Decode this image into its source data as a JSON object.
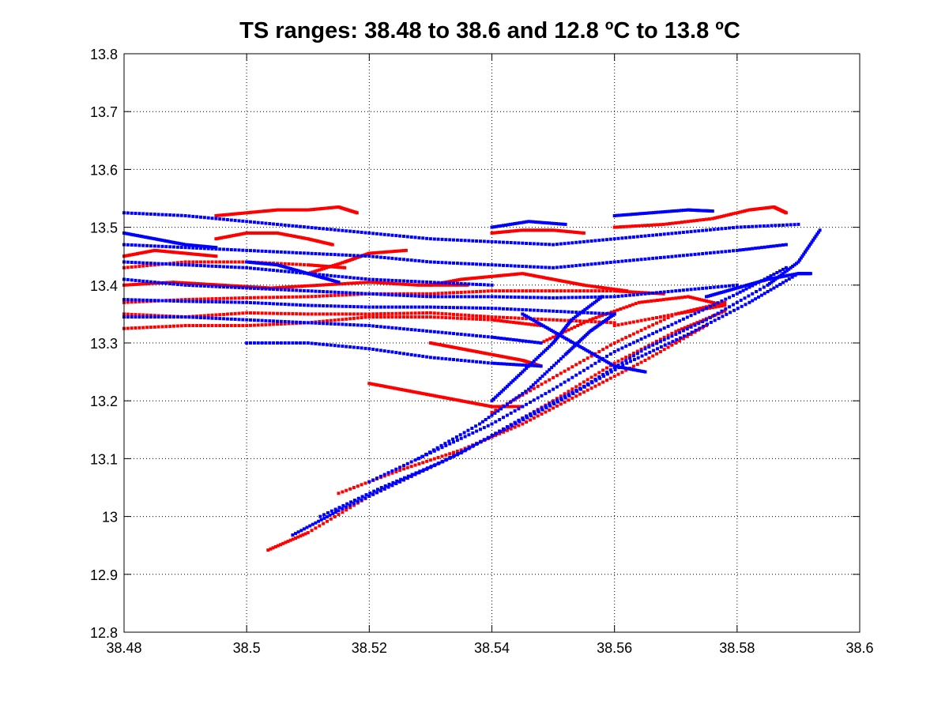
{
  "chart_data": {
    "type": "scatter",
    "title": "TS ranges: 38.48 to 38.6 and 12.8 ºC to 13.8 ºC",
    "xlabel": "",
    "ylabel": "",
    "xlim": [
      38.48,
      38.6
    ],
    "ylim": [
      12.8,
      13.8
    ],
    "xticks": [
      38.48,
      38.5,
      38.52,
      38.54,
      38.56,
      38.58,
      38.6
    ],
    "xtick_labels": [
      "38.48",
      "38.5",
      "38.52",
      "38.54",
      "38.56",
      "38.58",
      "38.6"
    ],
    "yticks": [
      12.8,
      12.9,
      13.0,
      13.1,
      13.2,
      13.3,
      13.4,
      13.5,
      13.6,
      13.7,
      13.8
    ],
    "ytick_labels": [
      "12.8",
      "12.9",
      "13",
      "13.1",
      "13.2",
      "13.3",
      "13.4",
      "13.5",
      "13.6",
      "13.7",
      "13.8"
    ],
    "grid": true,
    "series": [
      {
        "color": "#ff0000",
        "segments": [
          [
            [
              38.5035,
              12.942
            ],
            [
              38.51,
              12.972
            ],
            [
              38.52,
              13.035
            ],
            [
              38.53,
              13.085
            ],
            [
              38.54,
              13.14
            ],
            [
              38.55,
              13.2
            ],
            [
              38.56,
              13.265
            ],
            [
              38.57,
              13.32
            ],
            [
              38.578,
              13.355
            ]
          ],
          [
            [
              38.515,
              13.04
            ],
            [
              38.525,
              13.08
            ],
            [
              38.535,
              13.115
            ],
            [
              38.545,
              13.16
            ],
            [
              38.555,
              13.215
            ],
            [
              38.565,
              13.27
            ],
            [
              38.575,
              13.33
            ]
          ],
          [
            [
              38.54,
              13.18
            ],
            [
              38.55,
              13.24
            ],
            [
              38.56,
              13.3
            ],
            [
              38.57,
              13.35
            ],
            [
              38.578,
              13.37
            ]
          ],
          [
            [
              38.548,
              13.3
            ],
            [
              38.556,
              13.34
            ],
            [
              38.564,
              13.37
            ],
            [
              38.572,
              13.38
            ],
            [
              38.578,
              13.365
            ],
            [
              38.57,
              13.35
            ],
            [
              38.56,
              13.33
            ]
          ],
          [
            [
              38.48,
              13.325
            ],
            [
              38.49,
              13.33
            ],
            [
              38.5,
              13.33
            ],
            [
              38.51,
              13.335
            ],
            [
              38.52,
              13.345
            ],
            [
              38.53,
              13.345
            ],
            [
              38.54,
              13.34
            ],
            [
              38.548,
              13.33
            ]
          ],
          [
            [
              38.48,
              13.35
            ],
            [
              38.49,
              13.345
            ],
            [
              38.5,
              13.352
            ],
            [
              38.51,
              13.35
            ],
            [
              38.52,
              13.35
            ],
            [
              38.53,
              13.352
            ],
            [
              38.54,
              13.345
            ],
            [
              38.55,
              13.34
            ],
            [
              38.56,
              13.335
            ]
          ],
          [
            [
              38.48,
              13.37
            ],
            [
              38.49,
              13.375
            ],
            [
              38.5,
              13.378
            ],
            [
              38.51,
              13.38
            ],
            [
              38.52,
              13.385
            ],
            [
              38.53,
              13.385
            ],
            [
              38.54,
              13.39
            ],
            [
              38.55,
              13.39
            ],
            [
              38.56,
              13.39
            ],
            [
              38.568,
              13.385
            ]
          ],
          [
            [
              38.48,
              13.4
            ],
            [
              38.488,
              13.405
            ],
            [
              38.496,
              13.4
            ],
            [
              38.504,
              13.395
            ],
            [
              38.512,
              13.4
            ],
            [
              38.52,
              13.405
            ],
            [
              38.528,
              13.4
            ],
            [
              38.536,
              13.4
            ]
          ],
          [
            [
              38.48,
              13.43
            ],
            [
              38.49,
              13.44
            ],
            [
              38.5,
              13.44
            ],
            [
              38.51,
              13.435
            ],
            [
              38.516,
              13.43
            ]
          ],
          [
            [
              38.53,
              13.4
            ],
            [
              38.535,
              13.41
            ],
            [
              38.54,
              13.415
            ],
            [
              38.545,
              13.42
            ],
            [
              38.55,
              13.41
            ],
            [
              38.555,
              13.4
            ],
            [
              38.562,
              13.39
            ]
          ],
          [
            [
              38.495,
              13.52
            ],
            [
              38.5,
              13.525
            ],
            [
              38.505,
              13.53
            ],
            [
              38.51,
              13.53
            ],
            [
              38.515,
              13.535
            ],
            [
              38.518,
              13.525
            ]
          ],
          [
            [
              38.495,
              13.48
            ],
            [
              38.5,
              13.49
            ],
            [
              38.505,
              13.49
            ],
            [
              38.51,
              13.48
            ],
            [
              38.514,
              13.47
            ]
          ],
          [
            [
              38.54,
              13.49
            ],
            [
              38.545,
              13.495
            ],
            [
              38.55,
              13.495
            ],
            [
              38.555,
              13.49
            ]
          ],
          [
            [
              38.56,
              13.5
            ],
            [
              38.568,
              13.505
            ],
            [
              38.576,
              13.515
            ],
            [
              38.582,
              13.53
            ],
            [
              38.586,
              13.535
            ],
            [
              38.588,
              13.525
            ]
          ],
          [
            [
              38.52,
              13.23
            ],
            [
              38.525,
              13.22
            ],
            [
              38.53,
              13.21
            ],
            [
              38.535,
              13.2
            ],
            [
              38.54,
              13.19
            ],
            [
              38.545,
              13.19
            ]
          ],
          [
            [
              38.53,
              13.3
            ],
            [
              38.535,
              13.29
            ],
            [
              38.54,
              13.28
            ],
            [
              38.545,
              13.27
            ],
            [
              38.548,
              13.26
            ]
          ],
          [
            [
              38.48,
              13.45
            ],
            [
              38.485,
              13.46
            ],
            [
              38.49,
              13.455
            ],
            [
              38.495,
              13.45
            ]
          ],
          [
            [
              38.51,
              13.42
            ],
            [
              38.516,
              13.44
            ],
            [
              38.52,
              13.455
            ],
            [
              38.526,
              13.46
            ]
          ]
        ]
      },
      {
        "color": "#0000ff",
        "segments": [
          [
            [
              38.5075,
              12.968
            ],
            [
              38.515,
              13.01
            ],
            [
              38.525,
              13.06
            ],
            [
              38.535,
              13.11
            ],
            [
              38.545,
              13.17
            ],
            [
              38.555,
              13.225
            ],
            [
              38.565,
              13.29
            ],
            [
              38.575,
              13.34
            ],
            [
              38.585,
              13.4
            ],
            [
              38.59,
              13.44
            ],
            [
              38.5935,
              13.495
            ]
          ],
          [
            [
              38.512,
              13.0
            ],
            [
              38.522,
              13.05
            ],
            [
              38.532,
              13.095
            ],
            [
              38.542,
              13.15
            ],
            [
              38.552,
              13.205
            ],
            [
              38.562,
              13.265
            ],
            [
              38.572,
              13.315
            ],
            [
              38.582,
              13.37
            ],
            [
              38.59,
              13.42
            ]
          ],
          [
            [
              38.52,
              13.06
            ],
            [
              38.53,
              13.11
            ],
            [
              38.54,
              13.16
            ],
            [
              38.55,
              13.22
            ],
            [
              38.56,
              13.285
            ],
            [
              38.57,
              13.335
            ],
            [
              38.58,
              13.385
            ],
            [
              38.588,
              13.43
            ]
          ],
          [
            [
              38.528,
              13.1
            ],
            [
              38.538,
              13.16
            ],
            [
              38.546,
              13.22
            ],
            [
              38.552,
              13.28
            ],
            [
              38.556,
              13.32
            ],
            [
              38.56,
              13.35
            ]
          ],
          [
            [
              38.54,
              13.2
            ],
            [
              38.545,
              13.25
            ],
            [
              38.55,
              13.3
            ],
            [
              38.553,
              13.34
            ],
            [
              38.558,
              13.38
            ]
          ],
          [
            [
              38.48,
              13.525
            ],
            [
              38.49,
              13.52
            ],
            [
              38.5,
              13.51
            ],
            [
              38.51,
              13.5
            ],
            [
              38.52,
              13.49
            ],
            [
              38.53,
              13.48
            ],
            [
              38.54,
              13.475
            ],
            [
              38.55,
              13.47
            ],
            [
              38.56,
              13.48
            ],
            [
              38.57,
              13.49
            ],
            [
              38.58,
              13.5
            ],
            [
              38.59,
              13.505
            ]
          ],
          [
            [
              38.48,
              13.47
            ],
            [
              38.49,
              13.465
            ],
            [
              38.5,
              13.46
            ],
            [
              38.51,
              13.455
            ],
            [
              38.52,
              13.45
            ],
            [
              38.53,
              13.44
            ],
            [
              38.54,
              13.435
            ],
            [
              38.55,
              13.43
            ],
            [
              38.56,
              13.44
            ],
            [
              38.57,
              13.45
            ],
            [
              38.58,
              13.46
            ],
            [
              38.588,
              13.47
            ]
          ],
          [
            [
              38.48,
              13.41
            ],
            [
              38.49,
              13.4
            ],
            [
              38.5,
              13.395
            ],
            [
              38.51,
              13.39
            ],
            [
              38.52,
              13.385
            ],
            [
              38.53,
              13.38
            ],
            [
              38.54,
              13.38
            ],
            [
              38.55,
              13.378
            ],
            [
              38.56,
              13.38
            ],
            [
              38.57,
              13.39
            ],
            [
              38.58,
              13.4
            ]
          ],
          [
            [
              38.48,
              13.375
            ],
            [
              38.49,
              13.372
            ],
            [
              38.5,
              13.37
            ],
            [
              38.51,
              13.365
            ],
            [
              38.52,
              13.362
            ],
            [
              38.53,
              13.362
            ],
            [
              38.54,
              13.36
            ],
            [
              38.55,
              13.355
            ],
            [
              38.56,
              13.35
            ]
          ],
          [
            [
              38.48,
              13.345
            ],
            [
              38.49,
              13.345
            ],
            [
              38.5,
              13.34
            ],
            [
              38.51,
              13.335
            ],
            [
              38.52,
              13.33
            ],
            [
              38.53,
              13.32
            ],
            [
              38.54,
              13.31
            ],
            [
              38.548,
              13.3
            ]
          ],
          [
            [
              38.48,
              13.44
            ],
            [
              38.49,
              13.435
            ],
            [
              38.5,
              13.43
            ],
            [
              38.51,
              13.42
            ],
            [
              38.52,
              13.41
            ],
            [
              38.53,
              13.405
            ],
            [
              38.54,
              13.4
            ]
          ],
          [
            [
              38.5,
              13.3
            ],
            [
              38.51,
              13.3
            ],
            [
              38.52,
              13.29
            ],
            [
              38.53,
              13.275
            ],
            [
              38.54,
              13.265
            ],
            [
              38.548,
              13.26
            ]
          ],
          [
            [
              38.545,
              13.35
            ],
            [
              38.55,
              13.32
            ],
            [
              38.555,
              13.29
            ],
            [
              38.56,
              13.26
            ],
            [
              38.565,
              13.25
            ]
          ],
          [
            [
              38.56,
              13.52
            ],
            [
              38.566,
              13.525
            ],
            [
              38.572,
              13.53
            ],
            [
              38.576,
              13.528
            ]
          ],
          [
            [
              38.54,
              13.5
            ],
            [
              38.546,
              13.51
            ],
            [
              38.552,
              13.505
            ]
          ],
          [
            [
              38.575,
              13.38
            ],
            [
              38.58,
              13.395
            ],
            [
              38.585,
              13.41
            ],
            [
              38.59,
              13.42
            ],
            [
              38.592,
              13.42
            ]
          ],
          [
            [
              38.48,
              13.49
            ],
            [
              38.485,
              13.48
            ],
            [
              38.49,
              13.47
            ],
            [
              38.495,
              13.465
            ]
          ],
          [
            [
              38.5,
              13.44
            ],
            [
              38.505,
              13.435
            ],
            [
              38.51,
              13.42
            ],
            [
              38.515,
              13.405
            ]
          ]
        ]
      }
    ]
  }
}
